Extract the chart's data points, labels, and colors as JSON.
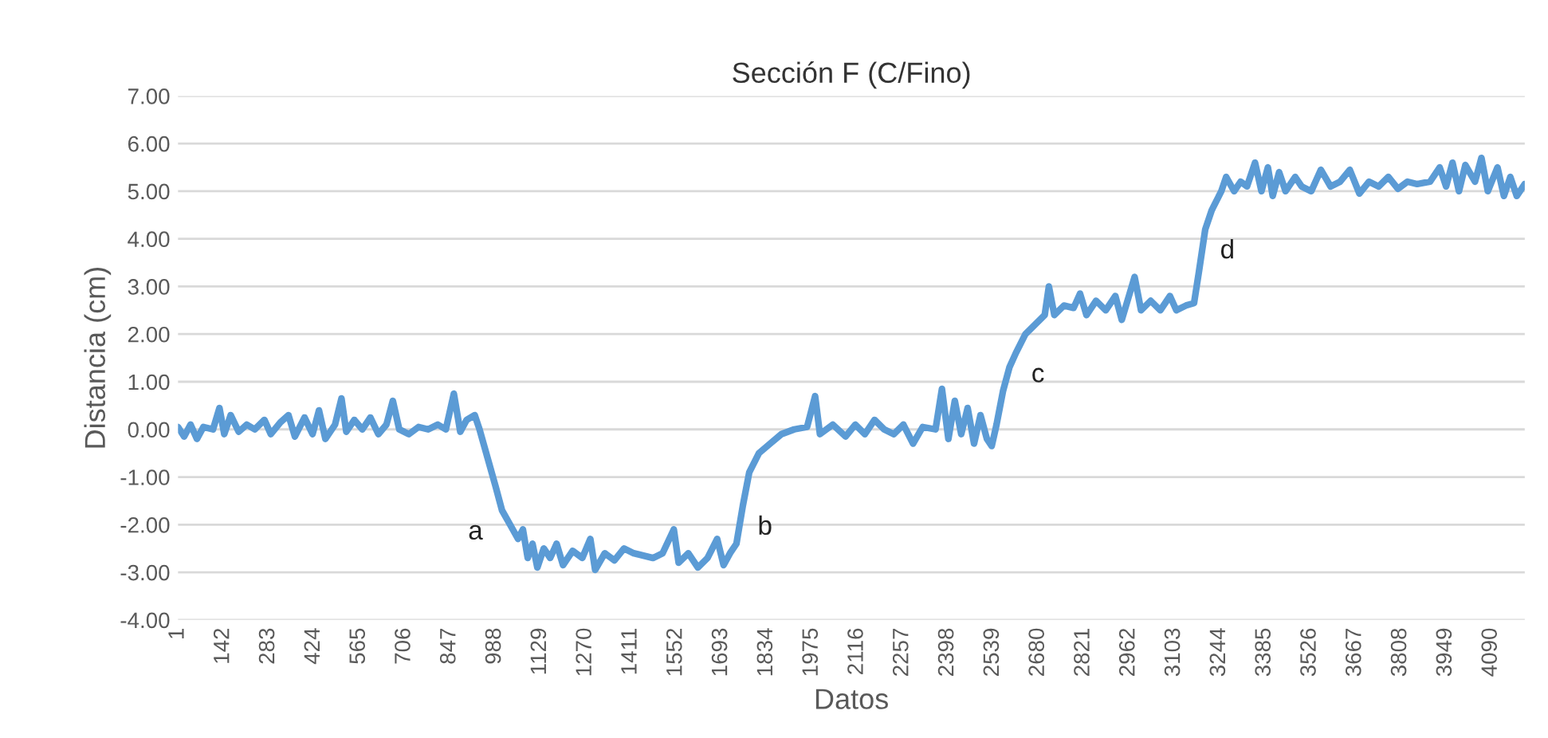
{
  "chart_data": {
    "type": "line",
    "title": "Sección F (C/Fino)",
    "xlabel": "Datos",
    "ylabel": "Distancia (cm)",
    "x": [
      1,
      20,
      40,
      60,
      80,
      110,
      130,
      145,
      165,
      190,
      215,
      240,
      270,
      290,
      320,
      345,
      365,
      395,
      420,
      440,
      460,
      490,
      510,
      525,
      550,
      575,
      600,
      625,
      650,
      670,
      690,
      720,
      750,
      780,
      810,
      835,
      860,
      880,
      900,
      925,
      940,
      965,
      990,
      1010,
      1035,
      1060,
      1075,
      1090,
      1105,
      1120,
      1140,
      1160,
      1180,
      1200,
      1230,
      1260,
      1285,
      1300,
      1330,
      1360,
      1390,
      1420,
      1450,
      1480,
      1510,
      1545,
      1560,
      1590,
      1620,
      1650,
      1680,
      1700,
      1720,
      1740,
      1760,
      1780,
      1810,
      1845,
      1880,
      1920,
      1960,
      1985,
      2000,
      2040,
      2080,
      2110,
      2140,
      2170,
      2200,
      2230,
      2260,
      2290,
      2320,
      2360,
      2380,
      2400,
      2420,
      2440,
      2460,
      2480,
      2500,
      2520,
      2535,
      2550,
      2570,
      2590,
      2610,
      2640,
      2670,
      2700,
      2713,
      2730,
      2760,
      2790,
      2810,
      2830,
      2860,
      2890,
      2920,
      2940,
      2960,
      2980,
      3000,
      3030,
      3060,
      3090,
      3110,
      3140,
      3165,
      3180,
      3200,
      3220,
      3250,
      3265,
      3290,
      3310,
      3330,
      3355,
      3375,
      3395,
      3410,
      3430,
      3450,
      3480,
      3500,
      3530,
      3560,
      3590,
      3620,
      3650,
      3680,
      3710,
      3740,
      3770,
      3800,
      3830,
      3860,
      3900,
      3930,
      3950,
      3970,
      3990,
      4010,
      4040,
      4060,
      4080,
      4110,
      4130,
      4150,
      4170,
      4195
    ],
    "series": [
      {
        "color": "#5b9bd5",
        "values": [
          0.05,
          -0.15,
          0.1,
          -0.2,
          0.05,
          0.0,
          0.45,
          -0.1,
          0.3,
          -0.05,
          0.1,
          0.0,
          0.2,
          -0.1,
          0.15,
          0.3,
          -0.15,
          0.25,
          -0.1,
          0.4,
          -0.2,
          0.1,
          0.65,
          -0.05,
          0.2,
          0.0,
          0.25,
          -0.1,
          0.1,
          0.6,
          0.0,
          -0.1,
          0.05,
          0.0,
          0.1,
          0.0,
          0.75,
          -0.05,
          0.2,
          0.3,
          0.0,
          -0.6,
          -1.2,
          -1.7,
          -2.0,
          -2.3,
          -2.1,
          -2.7,
          -2.4,
          -2.9,
          -2.5,
          -2.7,
          -2.4,
          -2.85,
          -2.55,
          -2.7,
          -2.3,
          -2.95,
          -2.6,
          -2.75,
          -2.5,
          -2.6,
          -2.65,
          -2.7,
          -2.6,
          -2.1,
          -2.8,
          -2.6,
          -2.9,
          -2.7,
          -2.3,
          -2.85,
          -2.6,
          -2.4,
          -1.6,
          -0.9,
          -0.5,
          -0.3,
          -0.1,
          0.0,
          0.05,
          0.7,
          -0.1,
          0.1,
          -0.15,
          0.1,
          -0.1,
          0.2,
          0.0,
          -0.1,
          0.1,
          -0.3,
          0.05,
          0.0,
          0.85,
          -0.2,
          0.6,
          -0.1,
          0.45,
          -0.3,
          0.3,
          -0.2,
          -0.35,
          0.1,
          0.8,
          1.3,
          1.6,
          2.0,
          2.2,
          2.4,
          3.0,
          2.4,
          2.6,
          2.55,
          2.85,
          2.4,
          2.7,
          2.5,
          2.8,
          2.3,
          2.75,
          3.2,
          2.5,
          2.7,
          2.5,
          2.8,
          2.5,
          2.6,
          2.65,
          3.3,
          4.2,
          4.6,
          5.0,
          5.3,
          5.0,
          5.2,
          5.1,
          5.6,
          5.0,
          5.5,
          4.9,
          5.4,
          5.0,
          5.3,
          5.1,
          5.0,
          5.45,
          5.1,
          5.2,
          5.45,
          4.95,
          5.2,
          5.1,
          5.3,
          5.05,
          5.2,
          5.15,
          5.2,
          5.5,
          5.1,
          5.6,
          5.0,
          5.55,
          5.2,
          5.7,
          5.0,
          5.5,
          4.9,
          5.3,
          4.9,
          5.15
        ]
      }
    ],
    "annotations": [
      {
        "text": "a",
        "x": 1010,
        "y": -1.7
      },
      {
        "text": "b",
        "x": 1760,
        "y": -1.6
      },
      {
        "text": "c",
        "x": 2610,
        "y": 1.6
      },
      {
        "text": "d",
        "x": 3200,
        "y": 4.2
      }
    ],
    "xlim": [
      1,
      4195
    ],
    "xticks": [
      1,
      142,
      283,
      424,
      565,
      706,
      847,
      988,
      1129,
      1270,
      1411,
      1552,
      1693,
      1834,
      1975,
      2116,
      2257,
      2398,
      2539,
      2680,
      2821,
      2962,
      3103,
      3244,
      3385,
      3526,
      3667,
      3808,
      3949,
      4090
    ],
    "ylim": [
      -4,
      7
    ],
    "yticks": [
      {
        "value": -4,
        "label": "-4.00"
      },
      {
        "value": -3,
        "label": "-3.00"
      },
      {
        "value": -2,
        "label": "-2.00"
      },
      {
        "value": -1,
        "label": "-1.00"
      },
      {
        "value": 0,
        "label": "0.00"
      },
      {
        "value": 1,
        "label": "1.00"
      },
      {
        "value": 2,
        "label": "2.00"
      },
      {
        "value": 3,
        "label": "3.00"
      },
      {
        "value": 4,
        "label": "4.00"
      },
      {
        "value": 5,
        "label": "5.00"
      },
      {
        "value": 6,
        "label": "6.00"
      },
      {
        "value": 7,
        "label": "7.00"
      }
    ],
    "grid": "y",
    "line_style": "solid",
    "marker": "none"
  }
}
